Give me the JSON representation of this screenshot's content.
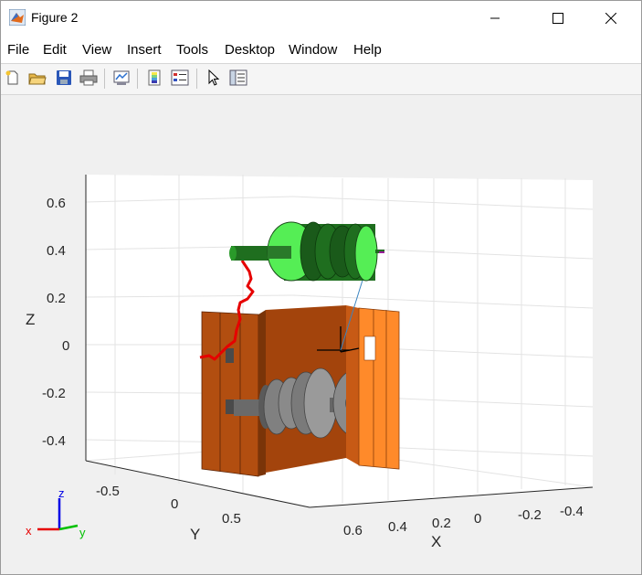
{
  "window": {
    "title": "Figure 2"
  },
  "menu": [
    "File",
    "Edit",
    "View",
    "Insert",
    "Tools",
    "Desktop",
    "Window",
    "Help"
  ],
  "toolbar_icons": [
    "new-figure-icon",
    "open-file-icon",
    "save-icon",
    "print-icon",
    "link-plot-icon",
    "colorbar-icon",
    "legend-icon",
    "pointer-icon",
    "property-inspector-icon"
  ],
  "axes": {
    "xlabel": "X",
    "ylabel": "Y",
    "zlabel": "Z",
    "z_ticks": [
      "0.6",
      "0.4",
      "0.2",
      "0",
      "-0.2",
      "-0.4"
    ],
    "y_ticks": [
      "-0.5",
      "0",
      "0.5"
    ],
    "x_ticks": [
      "0.6",
      "0.4",
      "0.2",
      "0",
      "-0.2",
      "-0.4"
    ]
  },
  "triad": {
    "z": "z",
    "x": "x",
    "y": "y"
  },
  "colors": {
    "frame_dark": "#b24e10",
    "frame_light": "#ff8a2a",
    "roller_green": "#1f6e1f",
    "roller_light": "#55ee55",
    "drum_gray": "#8a8a8a",
    "cable_red": "#e60000"
  }
}
